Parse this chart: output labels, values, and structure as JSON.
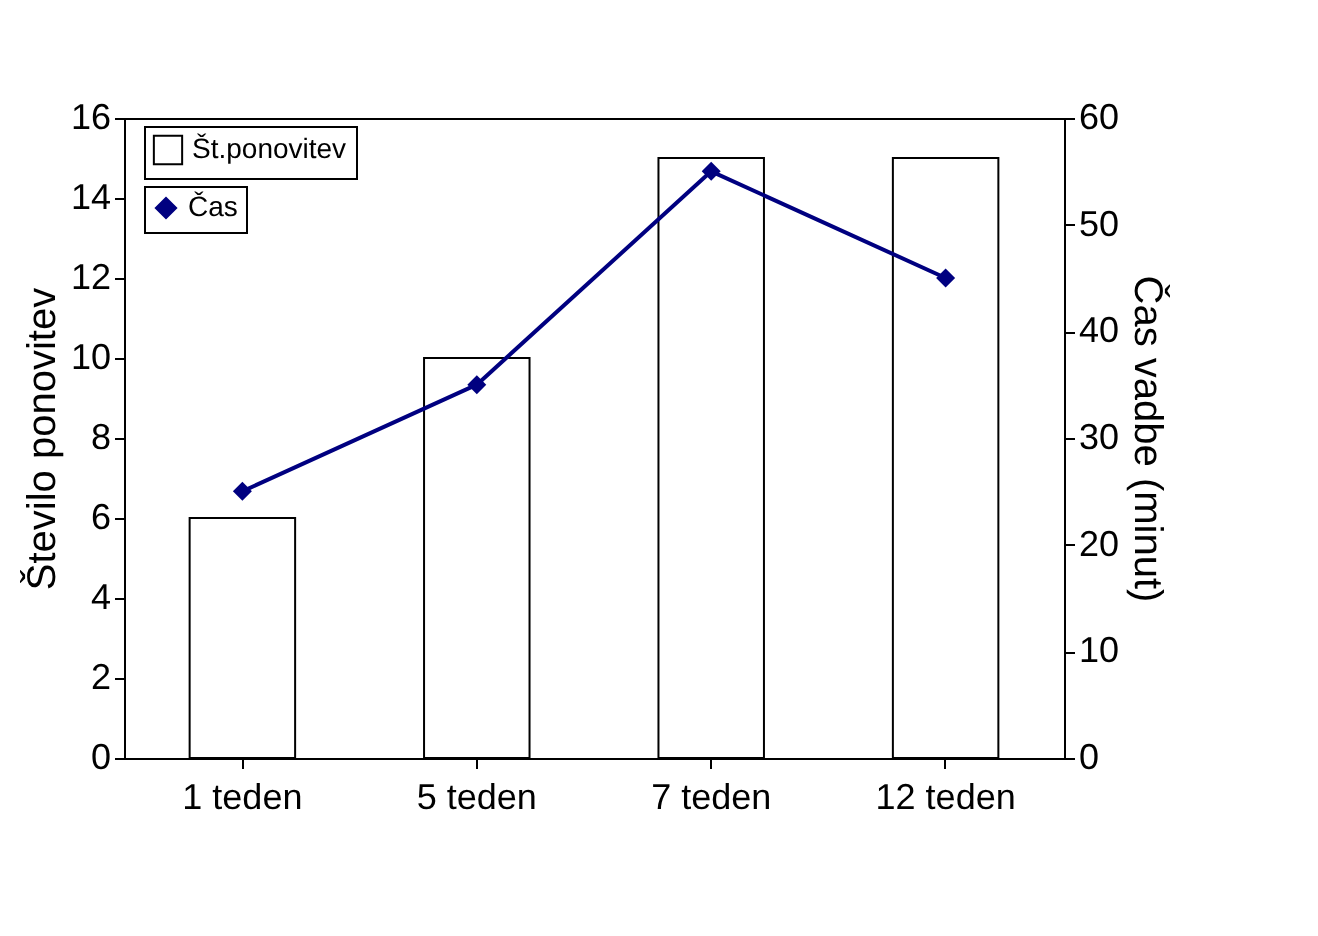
{
  "chart_data": {
    "type": "bar",
    "categories": [
      "1 teden",
      "5 teden",
      "7 teden",
      "12 teden"
    ],
    "series": [
      {
        "name": "Št.ponovitev",
        "color": "#ffffff",
        "values": [
          6,
          10,
          15,
          15
        ]
      },
      {
        "name": "Čas",
        "type": "line",
        "axis": "y2",
        "color": "#000080",
        "marker": "diamond",
        "values": [
          25,
          35,
          55,
          45
        ]
      }
    ],
    "ylabel": "Število ponovitev",
    "y2label": "Čas vadbe (minut)",
    "ylim": [
      0,
      16
    ],
    "yticks": [
      0,
      2,
      4,
      6,
      8,
      10,
      12,
      14,
      16
    ],
    "y2lim": [
      0,
      60
    ],
    "y2ticks": [
      0,
      10,
      20,
      30,
      40,
      50,
      60
    ],
    "grid": false,
    "legend": "top left"
  }
}
